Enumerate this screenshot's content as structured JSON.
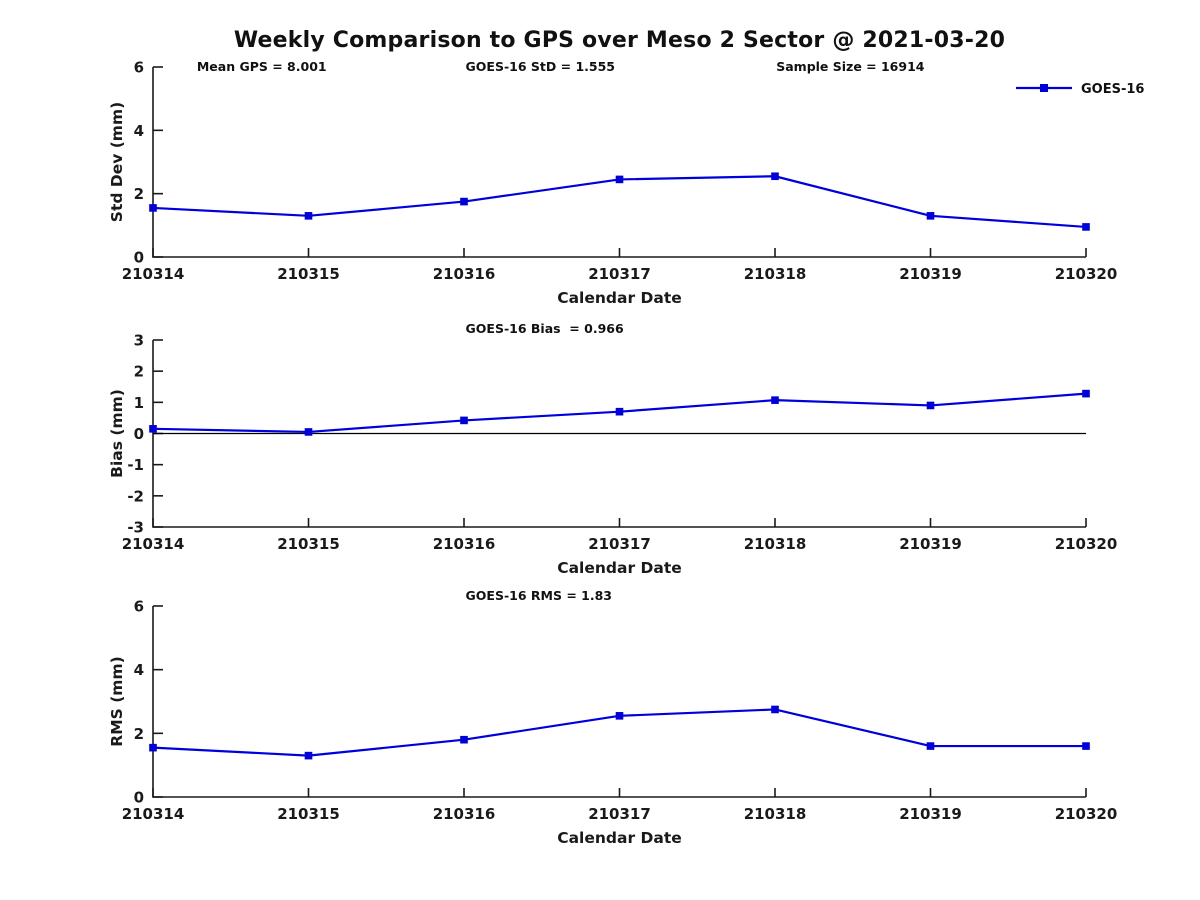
{
  "title": "Weekly Comparison to GPS over Meso 2 Sector @ 2021-03-20",
  "legend": {
    "label": "GOES-16"
  },
  "colors": {
    "line": "#0000dd",
    "axis": "#1a1a1a",
    "text": "#1a1a1a",
    "zero_line": "#000000",
    "background": "#ffffff"
  },
  "chart_data": [
    {
      "type": "line",
      "subplot": "std-dev",
      "categories": [
        "210314",
        "210315",
        "210316",
        "210317",
        "210318",
        "210319",
        "210320"
      ],
      "series": [
        {
          "name": "GOES-16",
          "values": [
            1.55,
            1.3,
            1.75,
            2.45,
            2.55,
            1.3,
            0.95
          ]
        }
      ],
      "xlabel": "Calendar Date",
      "ylabel": "Std Dev (mm)",
      "ylim": [
        0,
        6
      ],
      "yticks": [
        0,
        2,
        4,
        6
      ],
      "zero_line": false,
      "grid": false,
      "legend_position": "upper-right-above",
      "annotations": [
        {
          "text": "Mean GPS = 8.001",
          "xfrac": 0.047
        },
        {
          "text": "GOES-16 StD = 1.555",
          "xfrac": 0.335
        },
        {
          "text": "Sample Size = 16914",
          "xfrac": 0.668
        }
      ]
    },
    {
      "type": "line",
      "subplot": "bias",
      "categories": [
        "210314",
        "210315",
        "210316",
        "210317",
        "210318",
        "210319",
        "210320"
      ],
      "series": [
        {
          "name": "GOES-16",
          "values": [
            0.15,
            0.05,
            0.42,
            0.7,
            1.07,
            0.9,
            1.28
          ]
        }
      ],
      "xlabel": "Calendar Date",
      "ylabel": "Bias (mm)",
      "ylim": [
        -3,
        3
      ],
      "yticks": [
        -3,
        -2,
        -1,
        0,
        1,
        2,
        3
      ],
      "zero_line": true,
      "grid": false,
      "annotations": [
        {
          "text": "GOES-16 Bias  = 0.966",
          "xfrac": 0.335
        }
      ]
    },
    {
      "type": "line",
      "subplot": "rms",
      "categories": [
        "210314",
        "210315",
        "210316",
        "210317",
        "210318",
        "210319",
        "210320"
      ],
      "series": [
        {
          "name": "GOES-16",
          "values": [
            1.55,
            1.3,
            1.8,
            2.55,
            2.75,
            1.6,
            1.6
          ]
        }
      ],
      "xlabel": "Calendar Date",
      "ylabel": "RMS (mm)",
      "ylim": [
        0,
        6
      ],
      "yticks": [
        0,
        2,
        4,
        6
      ],
      "zero_line": false,
      "grid": false,
      "annotations": [
        {
          "text": "GOES-16 RMS = 1.83",
          "xfrac": 0.335
        }
      ]
    }
  ]
}
